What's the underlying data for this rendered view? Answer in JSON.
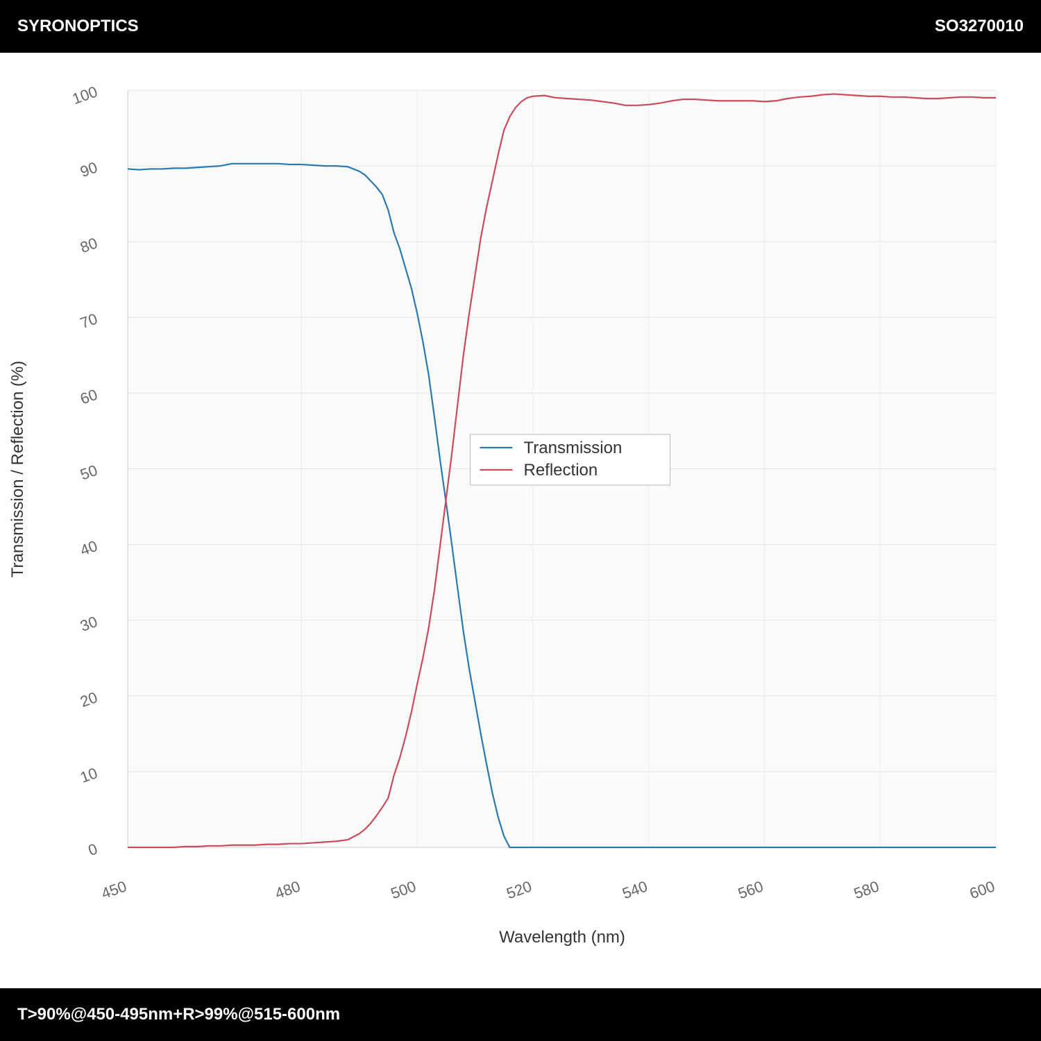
{
  "header": {
    "brand": "SYRONOPTICS",
    "code": "SO3270010"
  },
  "footer": {
    "spec": "T>90%@450-495nm+R>99%@515-600nm"
  },
  "chart_data": {
    "type": "line",
    "xlabel": "Wavelength (nm)",
    "ylabel": "Transmission / Reflection (%)",
    "x": [
      450,
      452,
      454,
      456,
      458,
      460,
      462,
      464,
      466,
      468,
      470,
      472,
      474,
      476,
      478,
      480,
      482,
      484,
      486,
      488,
      490,
      491,
      492,
      493,
      494,
      495,
      496,
      497,
      498,
      499,
      500,
      501,
      502,
      503,
      504,
      505,
      506,
      507,
      508,
      509,
      510,
      511,
      512,
      513,
      514,
      515,
      516,
      517,
      518,
      519,
      520,
      522,
      524,
      526,
      528,
      530,
      532,
      534,
      536,
      538,
      540,
      542,
      544,
      546,
      548,
      550,
      552,
      554,
      556,
      558,
      560,
      562,
      564,
      566,
      568,
      570,
      572,
      574,
      576,
      578,
      580,
      582,
      584,
      586,
      588,
      590,
      592,
      594,
      596,
      598,
      600
    ],
    "series": [
      {
        "name": "Transmission",
        "color": "#2a78b0",
        "values": [
          89.6,
          89.5,
          89.6,
          89.6,
          89.7,
          89.7,
          89.8,
          89.9,
          90.0,
          90.3,
          90.3,
          90.3,
          90.3,
          90.3,
          90.2,
          90.2,
          90.1,
          90.0,
          90.0,
          89.9,
          89.3,
          88.8,
          88.0,
          87.2,
          86.2,
          84.2,
          81.2,
          79.1,
          76.5,
          73.9,
          70.6,
          66.8,
          62.4,
          56.8,
          51.0,
          45.6,
          40.0,
          34.2,
          28.5,
          23.6,
          19.3,
          15.0,
          11.0,
          7.2,
          4.0,
          1.5,
          0,
          0,
          0,
          0,
          0,
          0,
          0,
          0,
          0,
          0,
          0,
          0,
          0,
          0,
          0,
          0,
          0,
          0,
          0,
          0,
          0,
          0,
          0,
          0,
          0,
          0,
          0,
          0,
          0,
          0,
          0,
          0,
          0,
          0,
          0,
          0,
          0,
          0,
          0,
          0,
          0,
          0,
          0,
          0,
          0
        ]
      },
      {
        "name": "Reflection",
        "color": "#cc4a5e",
        "values": [
          0,
          0,
          0,
          0,
          0,
          0.1,
          0.1,
          0.2,
          0.2,
          0.3,
          0.3,
          0.3,
          0.4,
          0.4,
          0.5,
          0.5,
          0.6,
          0.7,
          0.8,
          1.0,
          1.8,
          2.4,
          3.2,
          4.2,
          5.3,
          6.5,
          9.5,
          11.8,
          14.6,
          17.8,
          21.5,
          25.0,
          29.0,
          34.0,
          40.0,
          46.0,
          52.0,
          58.5,
          65.0,
          70.5,
          75.5,
          80.5,
          84.5,
          88.0,
          91.5,
          94.7,
          96.5,
          97.7,
          98.5,
          99.0,
          99.2,
          99.3,
          99.0,
          98.9,
          98.8,
          98.7,
          98.5,
          98.3,
          98.0,
          98.0,
          98.1,
          98.3,
          98.6,
          98.8,
          98.8,
          98.7,
          98.6,
          98.6,
          98.6,
          98.6,
          98.5,
          98.6,
          98.9,
          99.1,
          99.2,
          99.4,
          99.5,
          99.4,
          99.3,
          99.2,
          99.2,
          99.1,
          99.1,
          99.0,
          98.9,
          98.9,
          99.0,
          99.1,
          99.1,
          99.0,
          99.0
        ]
      }
    ],
    "xlim": [
      450,
      600
    ],
    "xticks": [
      450,
      480,
      500,
      520,
      540,
      560,
      580,
      600
    ],
    "ylim": [
      0,
      100
    ],
    "yticks": [
      0,
      10,
      20,
      30,
      40,
      50,
      60,
      70,
      80,
      90,
      100
    ],
    "grid": true,
    "legend": "center"
  }
}
